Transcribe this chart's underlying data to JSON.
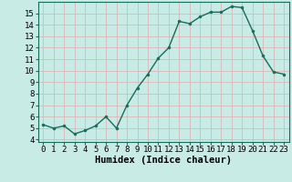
{
  "x": [
    0,
    1,
    2,
    3,
    4,
    5,
    6,
    7,
    8,
    9,
    10,
    11,
    12,
    13,
    14,
    15,
    16,
    17,
    18,
    19,
    20,
    21,
    22,
    23
  ],
  "y": [
    5.3,
    5.0,
    5.2,
    4.5,
    4.8,
    5.2,
    6.0,
    5.0,
    7.0,
    8.5,
    9.7,
    11.1,
    12.0,
    14.3,
    14.1,
    14.7,
    15.1,
    15.1,
    15.6,
    15.5,
    13.5,
    11.3,
    9.9,
    9.7
  ],
  "line_color": "#1a6b5a",
  "marker": "o",
  "markersize": 2.0,
  "linewidth": 1.0,
  "xlabel": "Humidex (Indice chaleur)",
  "ylabel_ticks": [
    4,
    5,
    6,
    7,
    8,
    9,
    10,
    11,
    12,
    13,
    14,
    15
  ],
  "ylim": [
    3.8,
    16.0
  ],
  "xlim": [
    -0.5,
    23.5
  ],
  "background_color": "#c8ebe6",
  "grid_color": "#d8b8b8",
  "tick_label_fontsize": 6.5,
  "xlabel_fontsize": 7.5
}
